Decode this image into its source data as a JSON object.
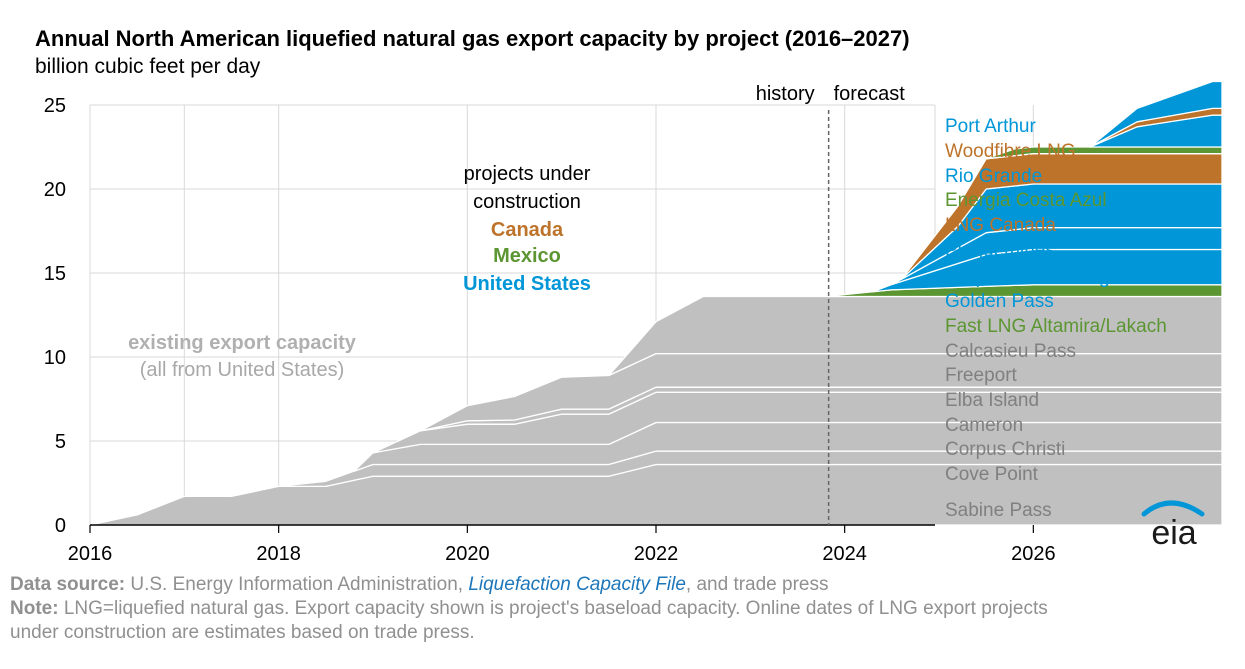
{
  "header": {
    "title": "Annual North American liquefied natural gas export capacity by project (2016–2027)",
    "subtitle": "billion cubic feet per day"
  },
  "annotations": {
    "history": "history",
    "forecast": "forecast",
    "under_construction": [
      "projects under",
      "construction"
    ],
    "canada": "Canada",
    "mexico": "Mexico",
    "united_states": "United States",
    "existing": "existing export capacity",
    "existing_sub": "(all from United States)"
  },
  "colors": {
    "existing": "#c0c0c0",
    "us": "#0096d7",
    "canada": "#bd732a",
    "mexico": "#5c9632",
    "axis": "#000000",
    "grid": "#d9d9d9",
    "label_gray": "#808080",
    "canada_text": "#bd732a",
    "mexico_text": "#5c9632",
    "us_text": "#0096d7"
  },
  "footer": {
    "source_label": "Data source:",
    "source_pre": " U.S. Energy Information Administration, ",
    "source_link": "Liquefaction Capacity File",
    "source_post": ", and trade press",
    "note_label": "Note:",
    "note_line1": " LNG=liquefied natural gas. Export capacity shown is project's baseload capacity. Online dates of LNG export projects",
    "note_line2": "under construction are estimates based on trade press."
  },
  "logo": {
    "text": "eia",
    "icon": "eia-logo-icon"
  },
  "chart_data": {
    "type": "area",
    "title": "Annual North American liquefied natural gas export capacity by project (2016–2027)",
    "ylabel": "billion cubic feet per day",
    "xlim": [
      2016,
      2028
    ],
    "ylim": [
      0,
      25
    ],
    "x_ticks": [
      "2016",
      "2018",
      "2020",
      "2022",
      "2024",
      "2026"
    ],
    "x_tick_values": [
      2016,
      2018,
      2020,
      2022,
      2024,
      2026
    ],
    "y_ticks": [
      "0",
      "5",
      "10",
      "15",
      "20",
      "25"
    ],
    "y_tick_values": [
      0,
      5,
      10,
      15,
      20,
      25
    ],
    "history_forecast_divider": 2023.83,
    "stack_order_bottom_to_top": [
      "Sabine Pass",
      "Cove Point",
      "Corpus Christi",
      "Cameron",
      "Elba Island",
      "Freeport",
      "Calcasieu Pass",
      "Fast LNG Altamira/Lakach",
      "Golden Pass",
      "Corpus Christi Stage III",
      "Plaquemines",
      "LNG Canada",
      "Energia Costa Azul",
      "Rio Grande",
      "Woodfibre LNG",
      "Port Arthur"
    ],
    "series": [
      {
        "name": "Port Arthur",
        "group": "United States",
        "points": [
          [
            2026.6,
            0
          ],
          [
            2027.1,
            0.8
          ],
          [
            2027.9,
            1.6
          ]
        ]
      },
      {
        "name": "Woodfibre LNG",
        "group": "Canada",
        "points": [
          [
            2026.6,
            0
          ],
          [
            2027.1,
            0.3
          ],
          [
            2027.9,
            0.4
          ]
        ]
      },
      {
        "name": "Rio Grande",
        "group": "United States",
        "points": [
          [
            2026.6,
            0
          ],
          [
            2027.1,
            1.2
          ],
          [
            2027.9,
            1.9
          ]
        ]
      },
      {
        "name": "Energia Costa Azul",
        "group": "Mexico",
        "points": [
          [
            2025.5,
            0
          ],
          [
            2025.8,
            0.4
          ],
          [
            2027.9,
            0.4
          ]
        ]
      },
      {
        "name": "LNG Canada",
        "group": "Canada",
        "points": [
          [
            2024.6,
            0
          ],
          [
            2025.5,
            1.8
          ],
          [
            2026.0,
            1.8
          ],
          [
            2027.9,
            1.8
          ]
        ]
      },
      {
        "name": "Plaquemines",
        "group": "United States",
        "points": [
          [
            2024.6,
            0
          ],
          [
            2025.2,
            1.3
          ],
          [
            2025.5,
            2.6
          ],
          [
            2026.0,
            2.6
          ],
          [
            2027.9,
            2.6
          ]
        ]
      },
      {
        "name": "Corpus Christi Stage III",
        "group": "United States",
        "points": [
          [
            2024.5,
            0
          ],
          [
            2025.5,
            1.3
          ],
          [
            2026.0,
            1.3
          ],
          [
            2027.9,
            1.3
          ]
        ]
      },
      {
        "name": "Golden Pass",
        "group": "United States",
        "points": [
          [
            2024.3,
            0
          ],
          [
            2025.5,
            1.9
          ],
          [
            2026.0,
            2.1
          ],
          [
            2027.9,
            2.1
          ]
        ]
      },
      {
        "name": "Fast LNG Altamira/Lakach",
        "group": "Mexico",
        "points": [
          [
            2023.8,
            0
          ],
          [
            2024.5,
            0.4
          ],
          [
            2026.0,
            0.7
          ],
          [
            2027.9,
            0.7
          ]
        ]
      },
      {
        "name": "Calcasieu Pass",
        "group": "United States",
        "points": [
          [
            2021.5,
            0
          ],
          [
            2022.0,
            1.9
          ],
          [
            2022.5,
            3.4
          ],
          [
            2027.9,
            3.4
          ]
        ]
      },
      {
        "name": "Freeport",
        "group": "United States",
        "points": [
          [
            2019.5,
            0
          ],
          [
            2020.0,
            0.9
          ],
          [
            2021.0,
            1.9
          ],
          [
            2021.5,
            2.0
          ],
          [
            2027.9,
            2.0
          ]
        ]
      },
      {
        "name": "Elba Island",
        "group": "United States",
        "points": [
          [
            2019.5,
            0
          ],
          [
            2020.0,
            0.2
          ],
          [
            2021.0,
            0.3
          ],
          [
            2027.9,
            0.3
          ]
        ]
      },
      {
        "name": "Cameron",
        "group": "United States",
        "points": [
          [
            2019.0,
            0
          ],
          [
            2019.5,
            0.8
          ],
          [
            2020.0,
            1.2
          ],
          [
            2020.5,
            1.2
          ],
          [
            2021.0,
            1.8
          ],
          [
            2021.5,
            1.8
          ],
          [
            2022.0,
            1.8
          ],
          [
            2027.9,
            1.8
          ]
        ]
      },
      {
        "name": "Corpus Christi",
        "group": "United States",
        "points": [
          [
            2018.8,
            0
          ],
          [
            2019.0,
            0.7
          ],
          [
            2019.5,
            1.2
          ],
          [
            2021.5,
            1.2
          ],
          [
            2022.0,
            1.7
          ],
          [
            2027.9,
            1.7
          ]
        ]
      },
      {
        "name": "Cove Point",
        "group": "United States",
        "points": [
          [
            2018.0,
            0
          ],
          [
            2018.5,
            0.3
          ],
          [
            2019.0,
            0.7
          ],
          [
            2021.5,
            0.7
          ],
          [
            2022.0,
            0.8
          ],
          [
            2027.9,
            0.8
          ]
        ]
      },
      {
        "name": "Sabine Pass",
        "group": "United States",
        "points": [
          [
            2016.0,
            0
          ],
          [
            2016.5,
            0.6
          ],
          [
            2017.0,
            1.7
          ],
          [
            2017.5,
            1.7
          ],
          [
            2018.0,
            2.3
          ],
          [
            2018.5,
            2.3
          ],
          [
            2019.0,
            2.9
          ],
          [
            2021.5,
            2.9
          ],
          [
            2022.0,
            3.6
          ],
          [
            2027.9,
            3.6
          ]
        ]
      }
    ],
    "legend": [
      {
        "label": "Port Arthur",
        "group": "United States"
      },
      {
        "label": "Woodfibre LNG",
        "group": "Canada"
      },
      {
        "label": "Rio Grande",
        "group": "United States"
      },
      {
        "label": "Energia Costa Azul",
        "group": "Mexico"
      },
      {
        "label": "LNG Canada",
        "group": "Canada"
      },
      {
        "label": "Plaquemines",
        "group": "United States"
      },
      {
        "label": "Corpus Christi Stage III",
        "group": "United States"
      },
      {
        "label": "Golden Pass",
        "group": "United States"
      },
      {
        "label": "Fast LNG Altamira/Lakach",
        "group": "Mexico"
      },
      {
        "label": "Calcasieu Pass",
        "group": "Existing"
      },
      {
        "label": "Freeport",
        "group": "Existing"
      },
      {
        "label": "Elba Island",
        "group": "Existing"
      },
      {
        "label": "Cameron",
        "group": "Existing"
      },
      {
        "label": "Corpus Christi",
        "group": "Existing"
      },
      {
        "label": "Cove Point",
        "group": "Existing"
      },
      {
        "label": "Sabine Pass",
        "group": "Existing"
      }
    ]
  }
}
